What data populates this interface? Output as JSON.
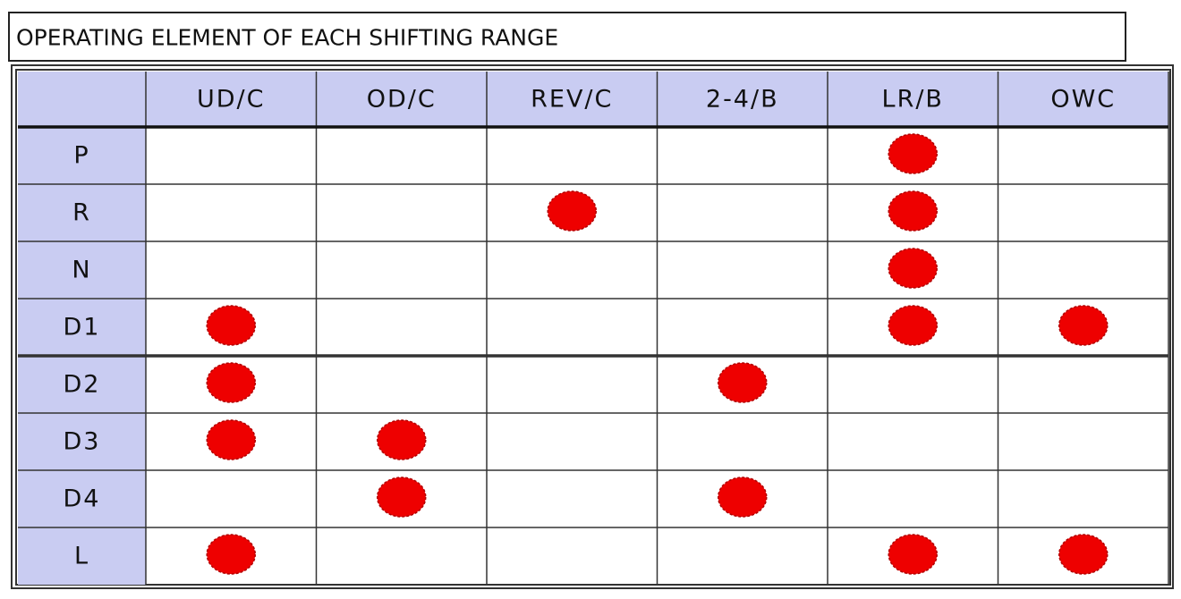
{
  "title": "OPERATING ELEMENT OF EACH SHIFTING RANGE",
  "table": {
    "columns": [
      "UD/C",
      "OD/C",
      "REV/C",
      "2-4/B",
      "LR/B",
      "OWC"
    ],
    "rows": [
      {
        "label": "P",
        "engaged": [
          false,
          false,
          false,
          false,
          true,
          false
        ]
      },
      {
        "label": "R",
        "engaged": [
          false,
          false,
          true,
          false,
          true,
          false
        ]
      },
      {
        "label": "N",
        "engaged": [
          false,
          false,
          false,
          false,
          true,
          false
        ]
      },
      {
        "label": "D1",
        "engaged": [
          true,
          false,
          false,
          false,
          true,
          true
        ]
      },
      {
        "label": "D2",
        "engaged": [
          true,
          false,
          false,
          true,
          false,
          false
        ]
      },
      {
        "label": "D3",
        "engaged": [
          true,
          true,
          false,
          false,
          false,
          false
        ]
      },
      {
        "label": "D4",
        "engaged": [
          false,
          true,
          false,
          true,
          false,
          false
        ]
      },
      {
        "label": "L",
        "engaged": [
          true,
          false,
          false,
          false,
          true,
          true
        ]
      }
    ]
  }
}
